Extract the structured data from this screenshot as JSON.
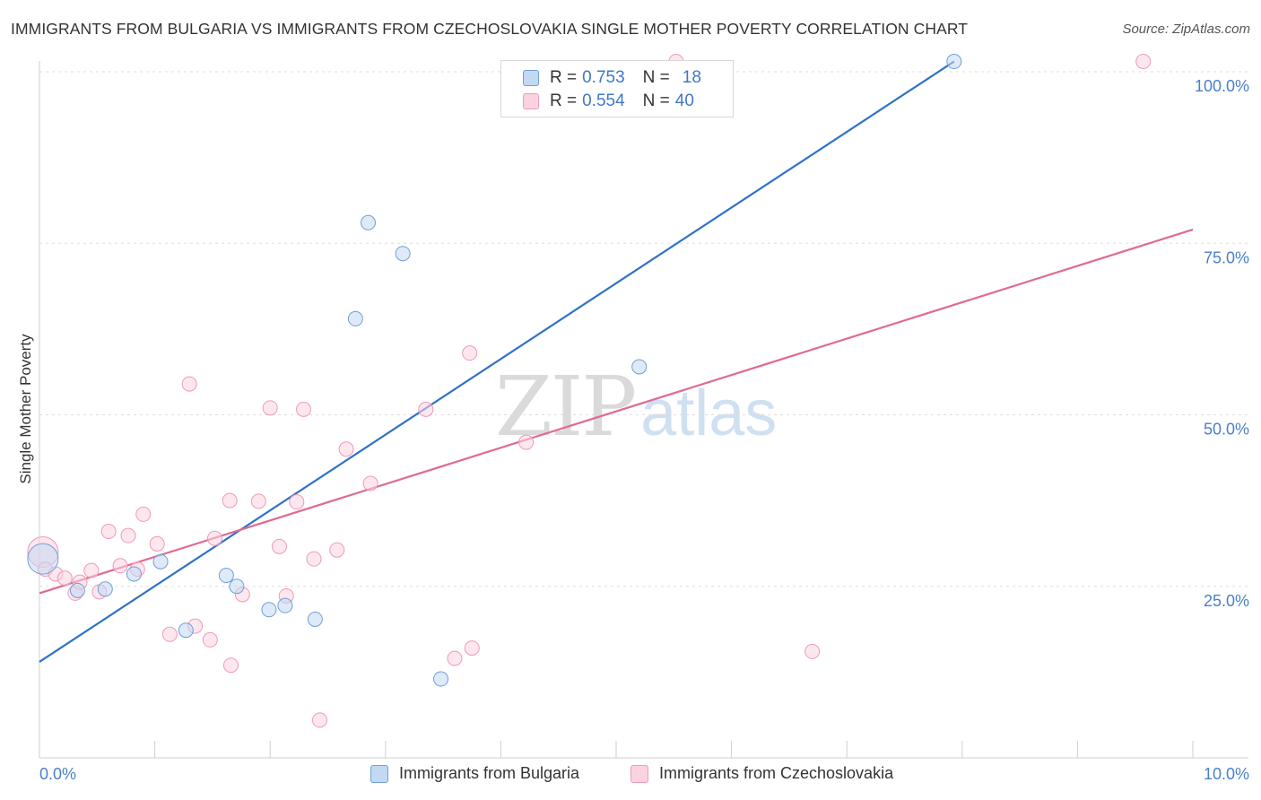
{
  "header": {
    "title": "IMMIGRANTS FROM BULGARIA VS IMMIGRANTS FROM CZECHOSLOVAKIA SINGLE MOTHER POVERTY CORRELATION CHART",
    "source": "Source: ZipAtlas.com"
  },
  "legend": {
    "r_label": "R =",
    "n_label": "N =",
    "series": [
      {
        "r": "0.753",
        "n": "18"
      },
      {
        "r": "0.554",
        "n": "40"
      }
    ]
  },
  "bottom_legend": [
    "Immigrants from Bulgaria",
    "Immigrants from Czechoslovakia"
  ],
  "watermark": {
    "zip": "ZIP",
    "atlas": "atlas"
  },
  "colors": {
    "blue_stroke": "#6f9fd8",
    "blue_fill": "#c2d8f3",
    "blue_line": "#2f72c8",
    "pink_stroke": "#ef9ab6",
    "pink_fill": "#fbd3e0",
    "pink_line": "#e06a92",
    "grid": "#dddddd",
    "axis_text": "#4a7fcb"
  },
  "chart_data": {
    "type": "scatter",
    "title": "IMMIGRANTS FROM BULGARIA VS IMMIGRANTS FROM CZECHOSLOVAKIA SINGLE MOTHER POVERTY CORRELATION CHART",
    "xlabel": "",
    "ylabel": "Single Mother Poverty",
    "xlim": [
      0,
      10
    ],
    "ylim": [
      0,
      100
    ],
    "x_tick_labels": {
      "min": "0.0%",
      "max": "10.0%"
    },
    "y_ticks": [
      {
        "value": 25,
        "label": "25.0%"
      },
      {
        "value": 50,
        "label": "50.0%"
      },
      {
        "value": 75,
        "label": "75.0%"
      },
      {
        "value": 100,
        "label": "100.0%"
      }
    ],
    "series": [
      {
        "name": "Immigrants from Bulgaria",
        "color": "blue",
        "points": [
          [
            0.03,
            29.0,
            "big"
          ],
          [
            0.33,
            24.4
          ],
          [
            0.57,
            24.6
          ],
          [
            0.82,
            26.8
          ],
          [
            1.05,
            28.6
          ],
          [
            1.27,
            18.6
          ],
          [
            1.62,
            26.6
          ],
          [
            1.71,
            25.0
          ],
          [
            1.99,
            21.6
          ],
          [
            2.13,
            22.2
          ],
          [
            2.39,
            20.2
          ],
          [
            2.74,
            64.0
          ],
          [
            2.85,
            78.0
          ],
          [
            3.15,
            73.5
          ],
          [
            3.48,
            11.5
          ],
          [
            5.2,
            57.0
          ],
          [
            7.93,
            101.5
          ]
        ],
        "trend": {
          "x0": 0.0,
          "y0": 14.0,
          "x1": 7.93,
          "y1": 101.5
        }
      },
      {
        "name": "Immigrants from Czechoslovakia",
        "color": "pink",
        "points": [
          [
            0.03,
            30.0,
            "big"
          ],
          [
            0.05,
            27.5
          ],
          [
            0.14,
            26.8
          ],
          [
            0.22,
            26.2
          ],
          [
            0.31,
            24.0
          ],
          [
            0.35,
            25.6
          ],
          [
            0.45,
            27.3
          ],
          [
            0.52,
            24.2
          ],
          [
            0.6,
            33.0
          ],
          [
            0.7,
            28.0
          ],
          [
            0.77,
            32.4
          ],
          [
            0.85,
            27.5
          ],
          [
            0.9,
            35.5
          ],
          [
            1.02,
            31.2
          ],
          [
            1.13,
            18.0
          ],
          [
            1.3,
            54.5
          ],
          [
            1.35,
            19.2
          ],
          [
            1.48,
            17.2
          ],
          [
            1.52,
            32.0
          ],
          [
            1.65,
            37.5
          ],
          [
            1.66,
            13.5
          ],
          [
            1.76,
            23.8
          ],
          [
            1.9,
            37.4
          ],
          [
            2.0,
            51.0
          ],
          [
            2.08,
            30.8
          ],
          [
            2.14,
            23.6
          ],
          [
            2.23,
            37.3
          ],
          [
            2.29,
            50.8
          ],
          [
            2.38,
            29.0
          ],
          [
            2.43,
            5.5
          ],
          [
            2.58,
            30.3
          ],
          [
            2.66,
            45.0
          ],
          [
            2.87,
            40.0
          ],
          [
            3.35,
            50.8
          ],
          [
            3.6,
            14.5
          ],
          [
            3.73,
            59.0
          ],
          [
            3.75,
            16.0
          ],
          [
            4.22,
            46.0
          ],
          [
            5.52,
            101.5
          ],
          [
            6.7,
            15.5
          ],
          [
            9.57,
            101.5
          ]
        ],
        "trend": {
          "x0": 0.0,
          "y0": 24.0,
          "x1": 10.0,
          "y1": 77.0
        }
      }
    ]
  }
}
